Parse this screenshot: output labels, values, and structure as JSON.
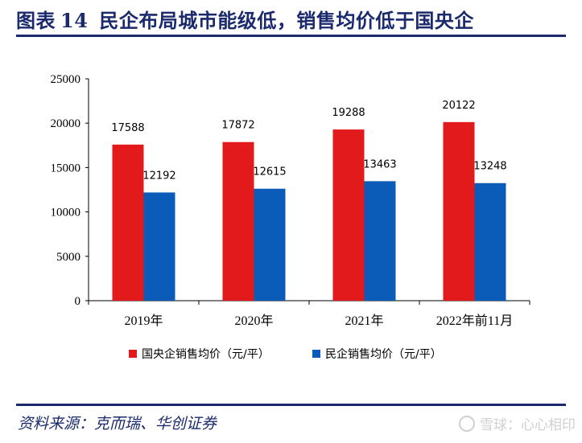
{
  "header": {
    "figure_label": "图表",
    "figure_number": "14",
    "title": "民企布局城市能级低，销售均价低于国央企"
  },
  "chart_data": {
    "type": "bar",
    "categories": [
      "2019年",
      "2020年",
      "2021年",
      "2022年前11月"
    ],
    "series": [
      {
        "name": "国央企销售均价（元/平）",
        "color": "#e31a1c",
        "values": [
          17588,
          17872,
          19288,
          20122
        ]
      },
      {
        "name": "民企销售均价（元/平）",
        "color": "#0b5cb8",
        "values": [
          12192,
          12615,
          13463,
          13248
        ]
      }
    ],
    "y_ticks": [
      0,
      5000,
      10000,
      15000,
      20000,
      25000
    ],
    "ylim": [
      0,
      25000
    ],
    "grid": false,
    "legend_position": "bottom"
  },
  "footer": {
    "source": "资料来源：克而瑞、华创证券",
    "watermark": "雪球：心心相印"
  }
}
